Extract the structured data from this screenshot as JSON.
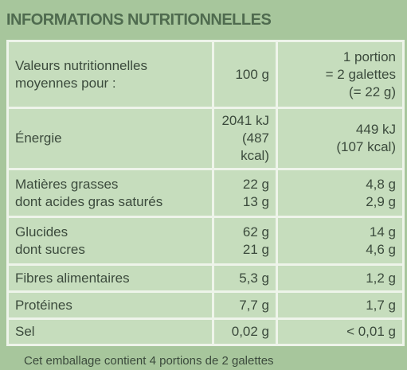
{
  "title": "INFORMATIONS NUTRITIONNELLES",
  "table": {
    "header": {
      "label": [
        "Valeurs nutritionnelles",
        "moyennes pour :"
      ],
      "per100": [
        "100 g"
      ],
      "portion": [
        "1 portion",
        "= 2 galettes",
        "(= 22 g)"
      ]
    },
    "rows": [
      {
        "label": [
          "Énergie"
        ],
        "per100": [
          "2041 kJ",
          "(487 kcal)"
        ],
        "portion": [
          "449 kJ",
          "(107 kcal)"
        ]
      },
      {
        "label": [
          "Matières grasses",
          "dont acides gras saturés"
        ],
        "per100": [
          "22 g",
          "13 g"
        ],
        "portion": [
          "4,8 g",
          "2,9 g"
        ]
      },
      {
        "label": [
          "Glucides",
          "dont sucres"
        ],
        "per100": [
          "62 g",
          "21 g"
        ],
        "portion": [
          "14 g",
          "4,6 g"
        ]
      },
      {
        "label": [
          "Fibres alimentaires"
        ],
        "per100": [
          "5,3 g"
        ],
        "portion": [
          "1,2 g"
        ]
      },
      {
        "label": [
          "Protéines"
        ],
        "per100": [
          "7,7 g"
        ],
        "portion": [
          "1,7 g"
        ]
      },
      {
        "label": [
          "Sel"
        ],
        "per100": [
          "0,02 g"
        ],
        "portion": [
          "< 0,01 g"
        ]
      }
    ]
  },
  "footer": "Cet emballage contient 4 portions de 2 galettes"
}
